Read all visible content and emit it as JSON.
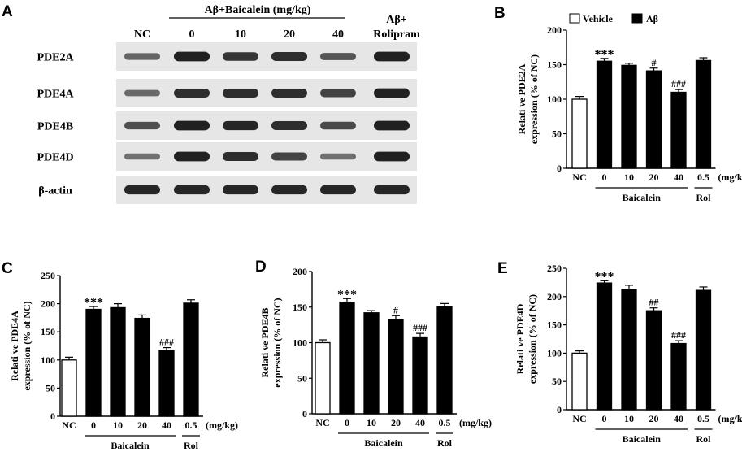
{
  "panels": {
    "A": {
      "letter": "A",
      "header": "Aβ+Baicalein (mg/kg)",
      "lane_labels": [
        "NC",
        "0",
        "10",
        "20",
        "40"
      ],
      "rolipram_label": [
        "Aβ+",
        "Rolipram"
      ],
      "rows": [
        {
          "label": "PDE2A",
          "intensity": [
            0.45,
            0.95,
            0.8,
            0.85,
            0.55,
            0.95
          ]
        },
        {
          "label": "PDE4A",
          "intensity": [
            0.4,
            0.85,
            0.85,
            0.85,
            0.7,
            0.95
          ]
        },
        {
          "label": "PDE4B",
          "intensity": [
            0.6,
            0.95,
            0.9,
            0.85,
            0.65,
            0.95
          ]
        },
        {
          "label": "PDE4D",
          "intensity": [
            0.35,
            0.95,
            0.85,
            0.7,
            0.35,
            0.95
          ]
        },
        {
          "label": "β-actin",
          "intensity": [
            0.9,
            0.9,
            0.9,
            0.9,
            0.9,
            0.9
          ]
        }
      ]
    },
    "B": {
      "letter": "B"
    },
    "C": {
      "letter": "C"
    },
    "D": {
      "letter": "D"
    },
    "E": {
      "letter": "E"
    }
  },
  "legend": {
    "vehicle": "Vehicle",
    "abeta": "Aβ"
  },
  "colors": {
    "vehicle": "#ffffff",
    "abeta": "#000000",
    "bands": "#1a1a1a",
    "blot_bg": "#e6e6e6"
  },
  "chart_data": [
    {
      "panel": "B",
      "type": "bar",
      "ylabel": [
        "Relati ve PDE2A",
        "expression (% of NC)"
      ],
      "ylim": [
        0,
        200
      ],
      "yticks": [
        0,
        50,
        100,
        150,
        200
      ],
      "categories": [
        "NC",
        "0",
        "10",
        "20",
        "40",
        "0.5"
      ],
      "unit_label": "(mg/kg)",
      "group_labels": [
        {
          "text": "Baicalein",
          "from": 1,
          "to": 4
        },
        {
          "text": "Rol",
          "from": 5,
          "to": 5
        }
      ],
      "values": [
        100,
        155,
        149,
        141,
        110,
        156
      ],
      "errors": [
        4,
        4,
        3,
        4,
        4,
        4
      ],
      "fill": [
        "vehicle",
        "abeta",
        "abeta",
        "abeta",
        "abeta",
        "abeta"
      ],
      "annotations": [
        "",
        "***",
        "",
        "#",
        "###",
        ""
      ]
    },
    {
      "panel": "C",
      "type": "bar",
      "ylabel": [
        "Relati ve PDE4A",
        "expression (% of NC)"
      ],
      "ylim": [
        0,
        250
      ],
      "yticks": [
        0,
        50,
        100,
        150,
        200,
        250
      ],
      "categories": [
        "NC",
        "0",
        "10",
        "20",
        "40",
        "0.5"
      ],
      "unit_label": "(mg/kg)",
      "group_labels": [
        {
          "text": "Baicalein",
          "from": 1,
          "to": 4
        },
        {
          "text": "Rol",
          "from": 5,
          "to": 5
        }
      ],
      "values": [
        100,
        190,
        193,
        174,
        117,
        201
      ],
      "errors": [
        5,
        5,
        7,
        6,
        5,
        6
      ],
      "fill": [
        "vehicle",
        "abeta",
        "abeta",
        "abeta",
        "abeta",
        "abeta"
      ],
      "annotations": [
        "",
        "***",
        "",
        "",
        "###",
        ""
      ]
    },
    {
      "panel": "D",
      "type": "bar",
      "ylabel": [
        "Relati ve PDE4B",
        "expression (% of NC)"
      ],
      "ylim": [
        0,
        200
      ],
      "yticks": [
        0,
        50,
        100,
        150,
        200
      ],
      "categories": [
        "NC",
        "0",
        "10",
        "20",
        "40",
        "0.5"
      ],
      "unit_label": "(mg/kg)",
      "group_labels": [
        {
          "text": "Baicalein",
          "from": 1,
          "to": 4
        },
        {
          "text": "Rol",
          "from": 5,
          "to": 5
        }
      ],
      "values": [
        100,
        157,
        142,
        133,
        108,
        151
      ],
      "errors": [
        4,
        5,
        3,
        5,
        5,
        4
      ],
      "fill": [
        "vehicle",
        "abeta",
        "abeta",
        "abeta",
        "abeta",
        "abeta"
      ],
      "annotations": [
        "",
        "***",
        "",
        "#",
        "###",
        ""
      ]
    },
    {
      "panel": "E",
      "type": "bar",
      "ylabel": [
        "Relati ve PDE4D",
        "expression (% of NC)"
      ],
      "ylim": [
        0,
        250
      ],
      "yticks": [
        0,
        50,
        100,
        150,
        200,
        250
      ],
      "categories": [
        "NC",
        "0",
        "10",
        "20",
        "40",
        "0.5"
      ],
      "unit_label": "(mg/kg)",
      "group_labels": [
        {
          "text": "Baicalein",
          "from": 1,
          "to": 4
        },
        {
          "text": "Rol",
          "from": 5,
          "to": 5
        }
      ],
      "values": [
        100,
        224,
        213,
        175,
        117,
        211
      ],
      "errors": [
        4,
        4,
        7,
        5,
        5,
        6
      ],
      "fill": [
        "vehicle",
        "abeta",
        "abeta",
        "abeta",
        "abeta",
        "abeta"
      ],
      "annotations": [
        "",
        "***",
        "",
        "##",
        "###",
        ""
      ]
    }
  ]
}
